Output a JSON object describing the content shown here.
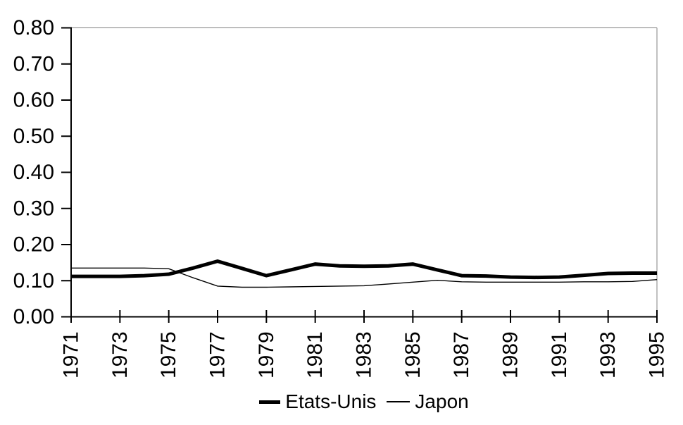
{
  "chart_data": {
    "type": "line",
    "title": "",
    "xlabel": "",
    "ylabel": "",
    "x": [
      1971,
      1972,
      1973,
      1974,
      1975,
      1976,
      1977,
      1978,
      1979,
      1980,
      1981,
      1982,
      1983,
      1984,
      1985,
      1986,
      1987,
      1988,
      1989,
      1990,
      1991,
      1992,
      1993,
      1994,
      1995
    ],
    "series": [
      {
        "name": "Etats-Unis",
        "stroke_width": 5,
        "values": [
          0.112,
          0.112,
          0.112,
          0.114,
          0.118,
          0.135,
          0.154,
          0.134,
          0.114,
          0.13,
          0.146,
          0.141,
          0.14,
          0.141,
          0.146,
          0.13,
          0.114,
          0.113,
          0.11,
          0.109,
          0.11,
          0.115,
          0.12,
          0.121,
          0.121
        ]
      },
      {
        "name": "Japon",
        "stroke_width": 1.4,
        "values": [
          0.135,
          0.135,
          0.135,
          0.135,
          0.133,
          0.108,
          0.085,
          0.082,
          0.082,
          0.083,
          0.084,
          0.085,
          0.086,
          0.091,
          0.096,
          0.101,
          0.097,
          0.096,
          0.096,
          0.096,
          0.096,
          0.097,
          0.097,
          0.098,
          0.103
        ]
      }
    ],
    "ylim": [
      0.0,
      0.8
    ],
    "ytick_step": 0.1,
    "ytick_labels": [
      "0.00",
      "0.10",
      "0.20",
      "0.30",
      "0.40",
      "0.50",
      "0.60",
      "0.70",
      "0.80"
    ],
    "xtick_labels": [
      "1971",
      "1973",
      "1975",
      "1977",
      "1979",
      "1981",
      "1983",
      "1985",
      "1987",
      "1989",
      "1991",
      "1993",
      "1995"
    ],
    "grid": false,
    "legend_position": "bottom-center",
    "colors": {
      "series": "#000000",
      "plot_border": "#808080",
      "background": "#ffffff"
    }
  }
}
